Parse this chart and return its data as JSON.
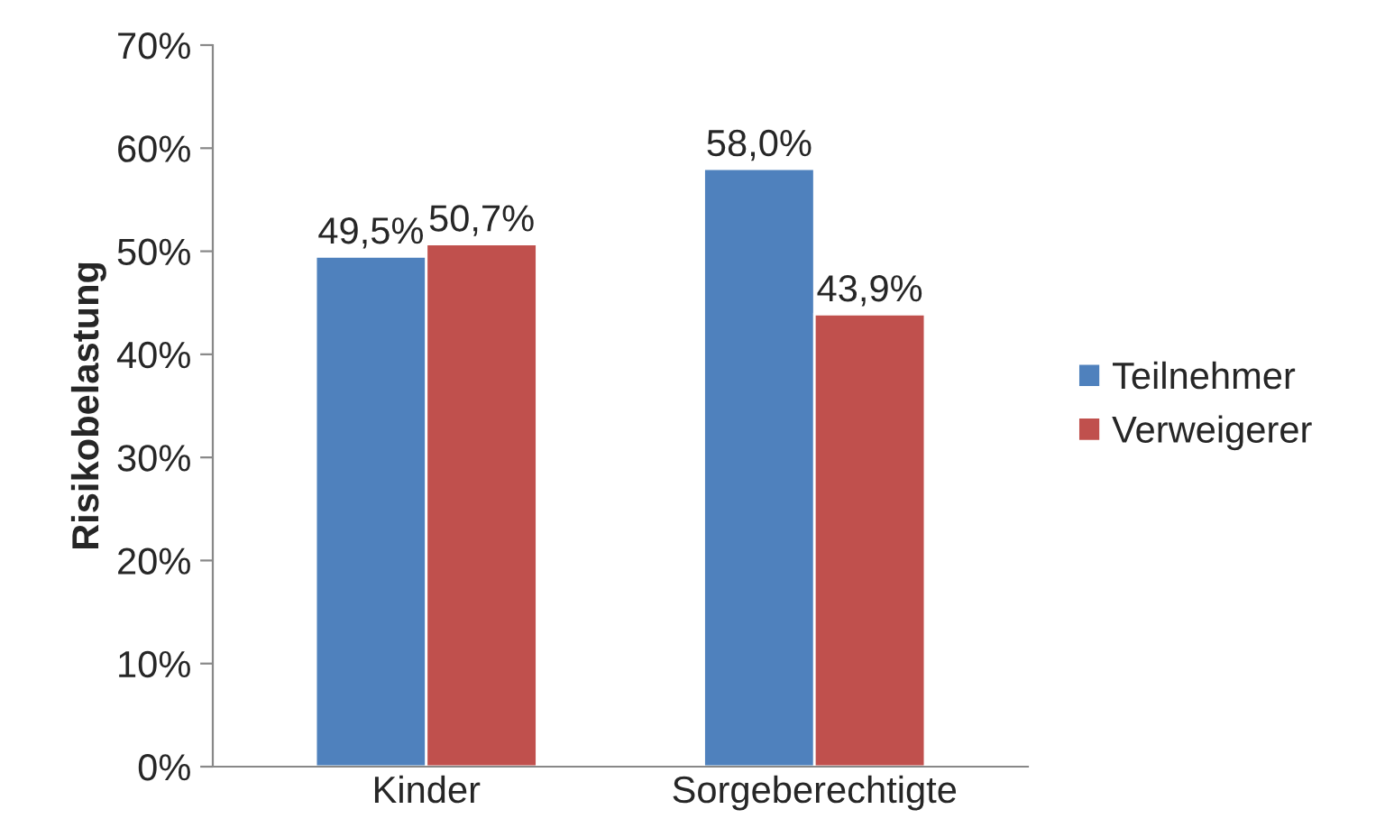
{
  "chart_data": {
    "type": "bar",
    "ylabel": "Risikobelastung",
    "categories": [
      "Kinder",
      "Sorgeberechtigte"
    ],
    "series": [
      {
        "name": "Teilnehmer",
        "color": "#4f81bd",
        "values": [
          49.5,
          58.0
        ],
        "value_labels": [
          "49,5%",
          "58,0%"
        ]
      },
      {
        "name": "Verweigerer",
        "color": "#c0504d",
        "values": [
          50.7,
          43.9
        ],
        "value_labels": [
          "50,7%",
          "43,9%"
        ]
      }
    ],
    "ylim": [
      0,
      70
    ],
    "yticks": [
      {
        "value": 0,
        "label": "0%"
      },
      {
        "value": 10,
        "label": "10%"
      },
      {
        "value": 20,
        "label": "20%"
      },
      {
        "value": 30,
        "label": "30%"
      },
      {
        "value": 40,
        "label": "40%"
      },
      {
        "value": 50,
        "label": "50%"
      },
      {
        "value": 60,
        "label": "60%"
      },
      {
        "value": 70,
        "label": "70%"
      }
    ],
    "grid": false,
    "legend": "right"
  }
}
